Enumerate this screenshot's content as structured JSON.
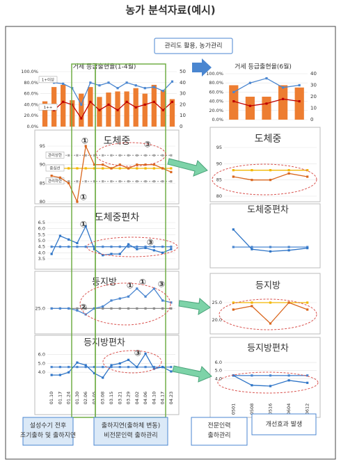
{
  "title": "농가 분석자료(예시)",
  "top_note": "관리도 활용, 농가관리",
  "callouts": [
    [
      "설성수기 전후",
      "조기출하 및 출하지연"
    ],
    [
      "출하지연(출하체 변동)",
      "비전문인력 출하관리"
    ],
    [
      "전문인력",
      "출하관리"
    ],
    [
      "개선효과 발생"
    ]
  ],
  "chart_data": [
    {
      "type": "combo",
      "title": "거세 등급출현율(1-4월)",
      "ylim": [
        0,
        100
      ],
      "yticks": [
        {
          "value": 0,
          "label": "0.0%"
        },
        {
          "value": 20,
          "label": "20.0%"
        },
        {
          "value": 40,
          "label": "40.0%"
        },
        {
          "value": 60,
          "label": "60.0%"
        },
        {
          "value": 80,
          "label": "80.0%"
        },
        {
          "value": 100,
          "label": "100.0%"
        }
      ],
      "y2lim": [
        0,
        50
      ],
      "y2ticks": [
        0,
        10,
        20,
        30,
        40,
        50
      ],
      "series": [
        {
          "kind": "bar",
          "axis": "y2",
          "color": "#ed7d31",
          "values": [
            23,
            36,
            38,
            24,
            30,
            36,
            27,
            31,
            32,
            32,
            35,
            30,
            38,
            33,
            25
          ]
        },
        {
          "kind": "line",
          "name": "1+이상",
          "color": "#4a86d0",
          "values": [
            85,
            80,
            78,
            70,
            40,
            80,
            75,
            80,
            70,
            80,
            75,
            70,
            72,
            65,
            82
          ]
        },
        {
          "kind": "line",
          "name": "1++",
          "color": "#c00000",
          "values": [
            35,
            30,
            45,
            40,
            15,
            45,
            30,
            40,
            30,
            45,
            35,
            40,
            45,
            30,
            45
          ]
        }
      ]
    },
    {
      "type": "line",
      "title": "도체중",
      "ylim": [
        80,
        95
      ],
      "yticks": [
        80,
        85,
        90,
        95
      ],
      "annotations": [
        "①",
        "③",
        "①"
      ],
      "series": [
        {
          "name": "관리상한",
          "color": "#a6a6a6",
          "dash": true,
          "values": [
            92.5,
            92.5,
            92.5,
            92.5,
            92.5,
            92.5,
            92.5,
            92.5,
            92.5,
            92.5,
            92.5,
            92.5,
            92.5,
            92.5,
            92.5
          ]
        },
        {
          "name": "중심선",
          "color": "#f2b600",
          "values": [
            89,
            89,
            89,
            89,
            89,
            89,
            89,
            89,
            89,
            89,
            89,
            89,
            89,
            89,
            89
          ]
        },
        {
          "name": "관리하한",
          "color": "#a6a6a6",
          "dash": true,
          "values": [
            85.5,
            85.5,
            85.5,
            85.5,
            85.5,
            85.5,
            85.5,
            85.5,
            85.5,
            85.5,
            85.5,
            85.5,
            85.5,
            85.5,
            85.5
          ]
        },
        {
          "color": "#d9651c",
          "values": [
            87,
            86.5,
            85,
            80,
            95,
            90,
            90,
            89,
            90,
            89,
            90,
            90,
            90,
            89,
            88
          ]
        }
      ]
    },
    {
      "type": "line",
      "title": "도체중편차",
      "ylim": [
        3.5,
        6.5
      ],
      "yticks": [
        3.5,
        {
          "value": 4,
          "label": "4.0"
        },
        4.5,
        {
          "value": 5,
          "label": "5.0"
        },
        5.5,
        {
          "value": 6,
          "label": "6.0"
        },
        6.5
      ],
      "annotations": [
        "①",
        "③"
      ],
      "series": [
        {
          "color": "#4a86d0",
          "values": [
            4.5,
            4.5,
            4.5,
            4.5,
            4.5,
            4.5,
            4.5,
            4.5,
            4.5,
            4.5,
            4.5,
            4.5,
            4.5,
            4.5,
            4.5
          ]
        },
        {
          "color": "#2f75c7",
          "values": [
            3.9,
            5.4,
            5.1,
            4.8,
            6.2,
            4.3,
            3.8,
            3.9,
            3.9,
            4.7,
            4.3,
            4.4,
            4.2,
            4.0,
            4.3
          ]
        }
      ]
    },
    {
      "type": "line",
      "title": "등지방",
      "ylim": [
        15,
        36
      ],
      "yticks": [
        {
          "value": 25,
          "label": "25.0"
        }
      ],
      "annotations": [
        "①",
        "①",
        "③",
        "②"
      ],
      "series": [
        {
          "color": "#8c8c8c",
          "values": [
            25,
            25,
            25,
            25,
            25,
            25,
            25,
            25,
            25,
            25,
            25,
            25,
            25,
            25,
            25
          ]
        },
        {
          "color": "#4a86d0",
          "values": [
            25,
            25,
            25,
            24,
            22,
            25,
            26,
            29,
            30,
            31,
            35,
            31,
            35,
            29,
            28
          ]
        }
      ]
    },
    {
      "type": "line",
      "title": "등지방편차",
      "ylim": [
        3,
        6.6
      ],
      "yticks": [
        {
          "value": 4,
          "label": "4.0"
        },
        {
          "value": 5,
          "label": "5.0"
        },
        {
          "value": 6,
          "label": "6.0"
        }
      ],
      "annotations": [
        "③"
      ],
      "categories": [
        "01.10",
        "01.17",
        "01.24",
        "01.30",
        "02.06",
        "03.05",
        "03.08",
        "03.15",
        "03.21",
        "03.29",
        "04.02",
        "04.06",
        "04.10",
        "04.17",
        "04.23"
      ],
      "series": [
        {
          "color": "#4a86d0",
          "values": [
            4.6,
            4.6,
            4.6,
            4.6,
            4.6,
            4.6,
            4.6,
            4.6,
            4.6,
            4.6,
            4.6,
            4.6,
            4.6,
            4.6,
            4.6
          ]
        },
        {
          "color": "#2f75c7",
          "values": [
            3.7,
            3.7,
            4.0,
            5.1,
            4.8,
            3.9,
            3.4,
            4.8,
            5.0,
            5.4,
            4.6,
            6.1,
            4.4,
            4.6,
            4.1
          ]
        }
      ]
    },
    {
      "type": "combo",
      "title": "거세 등급출현율(6월)",
      "ylim": [
        0,
        100
      ],
      "yticks": [
        {
          "value": 0,
          "label": "0.0%"
        },
        {
          "value": 20,
          "label": "20.0%"
        },
        {
          "value": 40,
          "label": "40.0%"
        },
        {
          "value": 60,
          "label": "60.0%"
        },
        {
          "value": 80,
          "label": "80.0%"
        },
        {
          "value": 100,
          "label": "100.0%"
        }
      ],
      "y2lim": [
        0,
        40
      ],
      "y2ticks": [
        0,
        10,
        20,
        30,
        40
      ],
      "series": [
        {
          "kind": "bar",
          "axis": "y2",
          "color": "#ed7d31",
          "values": [
            30,
            20,
            20,
            30,
            28
          ]
        },
        {
          "kind": "line",
          "color": "#4a86d0",
          "values": [
            60,
            80,
            90,
            70,
            75
          ]
        },
        {
          "kind": "line",
          "color": "#c00000",
          "values": [
            40,
            30,
            35,
            45,
            40
          ]
        }
      ]
    },
    {
      "type": "line",
      "title": "도체중",
      "ylim": [
        80,
        95
      ],
      "yticks": [
        80,
        85,
        90,
        95
      ],
      "series": [
        {
          "color": "#f2b600",
          "values": [
            88,
            88,
            88,
            88,
            88
          ]
        },
        {
          "color": "#d9651c",
          "values": [
            86,
            85,
            85,
            87,
            86
          ]
        }
      ]
    },
    {
      "type": "line",
      "title": "도체중편차",
      "ylim": [
        3.5,
        6.8
      ],
      "series": [
        {
          "color": "#4a86d0",
          "values": [
            4.7,
            4.7,
            4.7,
            4.7,
            4.7
          ]
        },
        {
          "color": "#2f75c7",
          "values": [
            6.3,
            4.5,
            4.3,
            4.4,
            4.6
          ]
        }
      ]
    },
    {
      "type": "line",
      "title": "등지방",
      "ylim": [
        17,
        27
      ],
      "yticks": [
        {
          "value": 20,
          "label": "20.0"
        },
        {
          "value": 25,
          "label": "25.0"
        }
      ],
      "series": [
        {
          "color": "#f2b600",
          "values": [
            25,
            25,
            25,
            25,
            25
          ]
        },
        {
          "color": "#d9651c",
          "values": [
            23,
            24,
            19,
            25,
            23
          ]
        }
      ]
    },
    {
      "type": "line",
      "title": "등지방편차",
      "ylim": [
        2.5,
        6.6
      ],
      "yticks": [
        {
          "value": 4,
          "label": "4.0"
        },
        {
          "value": 5,
          "label": "5.0"
        },
        {
          "value": 6,
          "label": "6.0"
        }
      ],
      "categories": [
        "0501",
        "0508",
        "0516",
        "0604",
        "0612"
      ],
      "series": [
        {
          "color": "#4a86d0",
          "values": [
            4.4,
            4.4,
            4.4,
            4.4,
            4.4
          ]
        },
        {
          "color": "#2f75c7",
          "values": [
            4.4,
            3.2,
            3.1,
            3.8,
            3.5
          ]
        }
      ]
    }
  ]
}
